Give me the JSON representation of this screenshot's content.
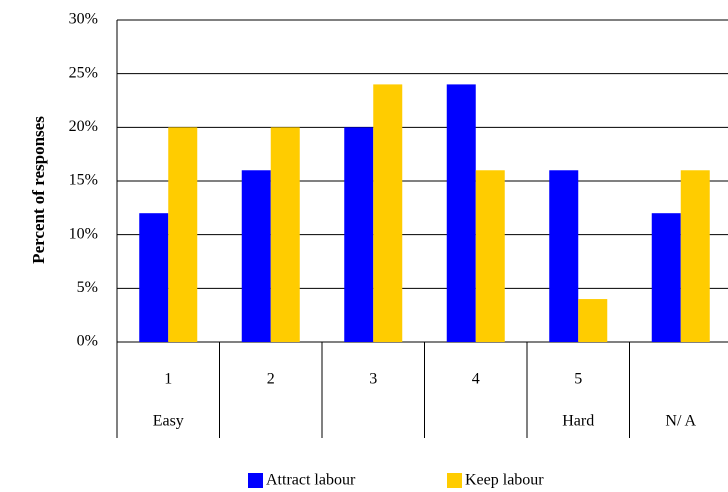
{
  "chart_data": {
    "type": "bar",
    "y_label": "Percent of responses",
    "categories": [
      "1",
      "2",
      "3",
      "4",
      "5",
      null
    ],
    "category_sublabels": [
      "Easy",
      null,
      null,
      null,
      "Hard",
      "N/ A"
    ],
    "series": [
      {
        "name": "Attract labour",
        "color": "#0000ff",
        "values": [
          12,
          16,
          20,
          24,
          16,
          12
        ]
      },
      {
        "name": "Keep labour",
        "color": "#ffcc00",
        "values": [
          20,
          20,
          24,
          16,
          4,
          16
        ]
      }
    ],
    "ylim": [
      0,
      30
    ],
    "yticks": [
      {
        "value": 0,
        "label": "0%"
      },
      {
        "value": 5,
        "label": "5%"
      },
      {
        "value": 10,
        "label": "10%"
      },
      {
        "value": 15,
        "label": "15%"
      },
      {
        "value": 20,
        "label": "20%"
      },
      {
        "value": 25,
        "label": "25%"
      },
      {
        "value": 30,
        "label": "30%"
      }
    ],
    "grid": true,
    "legend": "bottom"
  }
}
